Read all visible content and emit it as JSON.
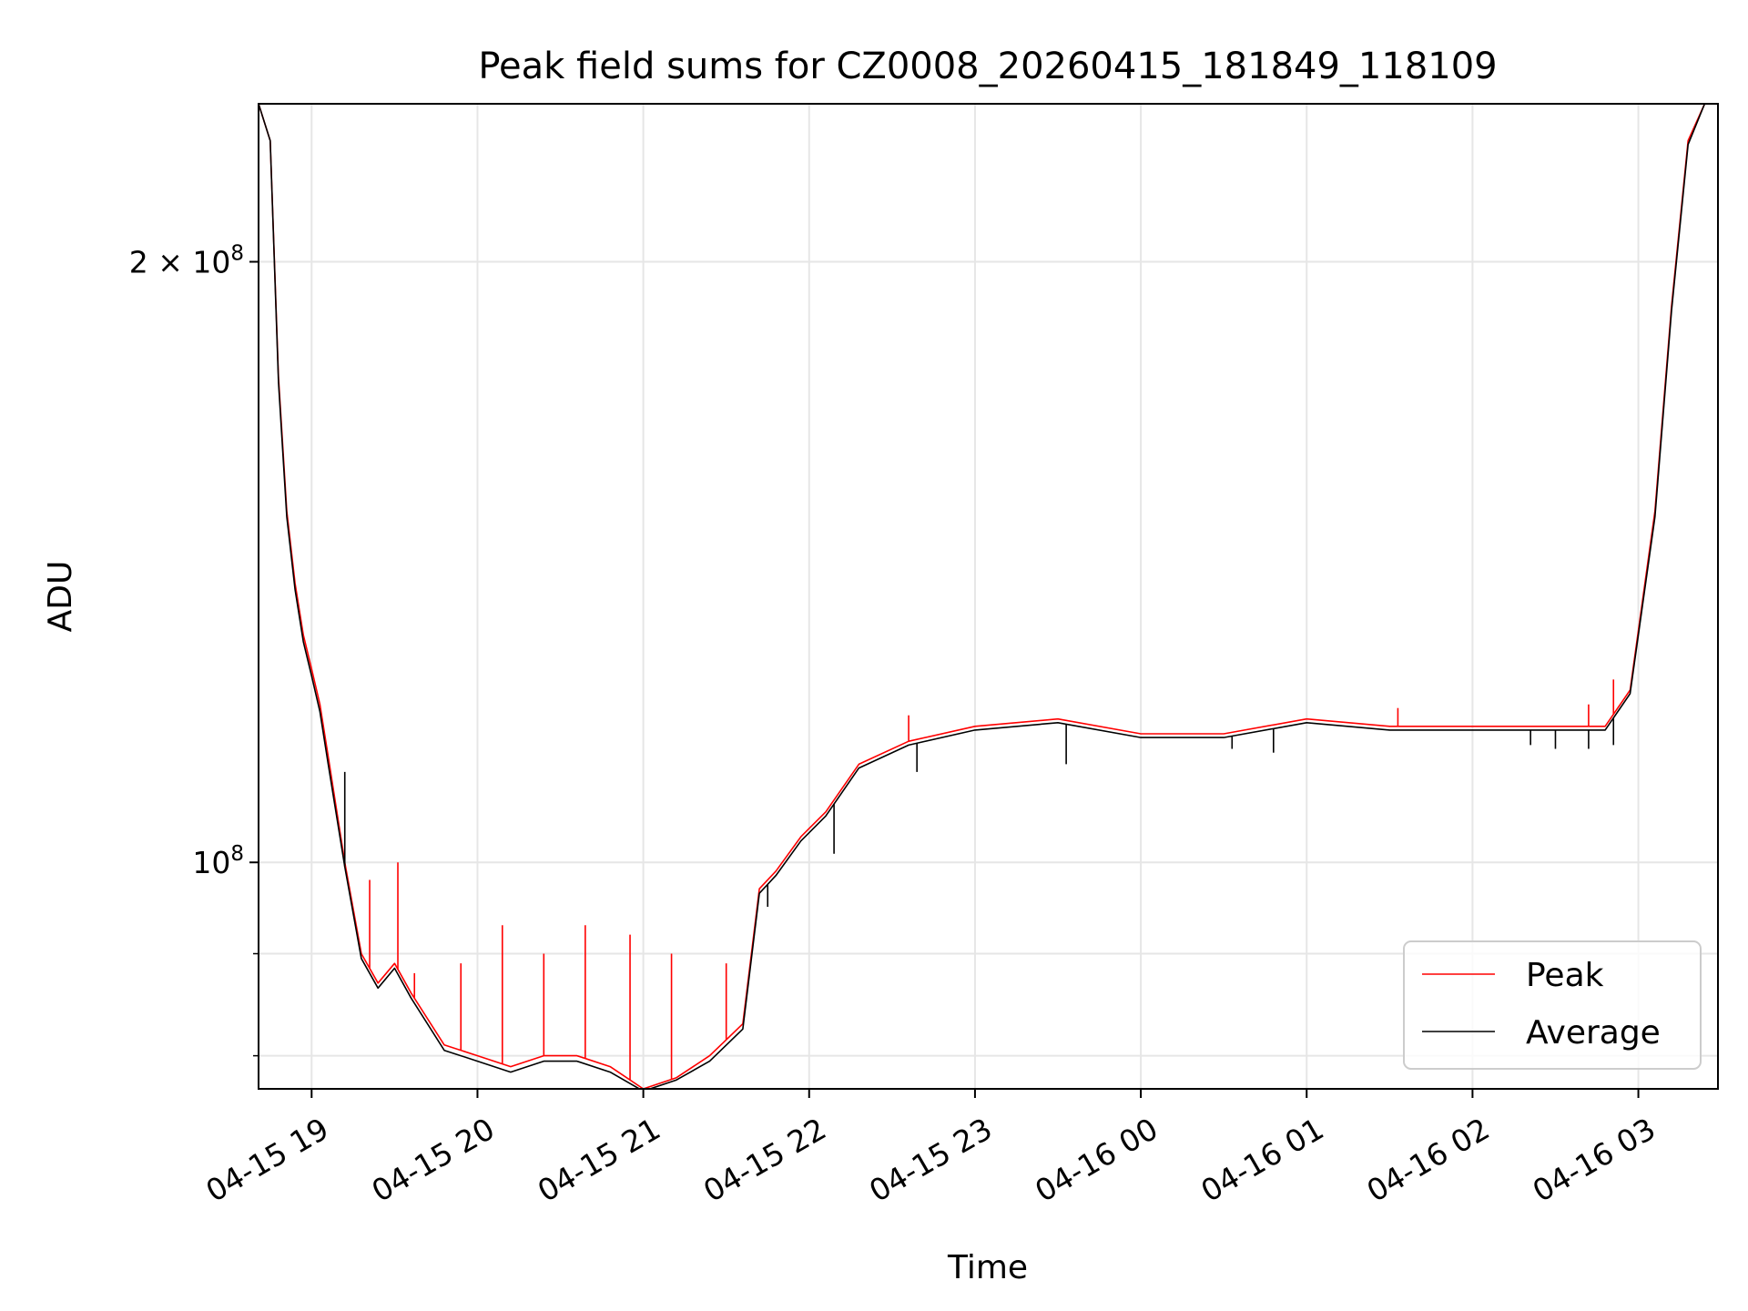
{
  "chart_data": {
    "type": "line",
    "title": "Peak field sums for CZ0008_20260415_181849_118109",
    "xlabel": "Time",
    "ylabel": "ADU",
    "yscale": "log",
    "ylim": [
      77000000,
      240000000
    ],
    "xlim_hours": [
      18.68,
      27.48
    ],
    "grid": true,
    "legend_loc": "lower right",
    "x_ticks": [
      {
        "hour": 19,
        "label": "04-15 19"
      },
      {
        "hour": 20,
        "label": "04-15 20"
      },
      {
        "hour": 21,
        "label": "04-15 21"
      },
      {
        "hour": 22,
        "label": "04-15 22"
      },
      {
        "hour": 23,
        "label": "04-15 23"
      },
      {
        "hour": 24,
        "label": "04-16 00"
      },
      {
        "hour": 25,
        "label": "04-16 01"
      },
      {
        "hour": 26,
        "label": "04-16 02"
      },
      {
        "hour": 27,
        "label": "04-16 03"
      }
    ],
    "y_major_ticks": [
      {
        "value": 100000000,
        "base": "10",
        "exp": "8",
        "coef": ""
      },
      {
        "value": 200000000,
        "base": "10",
        "exp": "8",
        "coef": "2 × "
      }
    ],
    "y_minor_ticks": [
      80000000,
      90000000
    ],
    "x_hours": [
      18.68,
      18.75,
      18.8,
      18.85,
      18.9,
      18.95,
      19.0,
      19.05,
      19.1,
      19.2,
      19.3,
      19.4,
      19.5,
      19.6,
      19.8,
      20.0,
      20.2,
      20.4,
      20.6,
      20.8,
      21.0,
      21.2,
      21.4,
      21.6,
      21.7,
      21.8,
      21.95,
      22.1,
      22.3,
      22.6,
      23.0,
      23.5,
      24.0,
      24.5,
      25.0,
      25.5,
      26.0,
      26.5,
      26.8,
      26.95,
      27.1,
      27.2,
      27.3,
      27.4,
      27.48
    ],
    "series": [
      {
        "name": "Peak",
        "color": "#ff0000",
        "values": [
          240000000,
          230000000,
          175000000,
          150000000,
          138000000,
          130000000,
          125000000,
          120000000,
          113000000,
          100000000,
          90000000,
          87000000,
          89000000,
          86000000,
          81000000,
          80000000,
          79000000,
          80000000,
          80000000,
          79000000,
          77000000,
          78000000,
          80000000,
          83000000,
          97000000,
          99000000,
          103000000,
          106000000,
          112000000,
          115000000,
          117000000,
          118000000,
          116000000,
          116000000,
          118000000,
          117000000,
          117000000,
          117000000,
          117000000,
          122000000,
          150000000,
          190000000,
          230000000,
          240000000,
          240000000
        ]
      },
      {
        "name": "Average",
        "color": "#000000",
        "values": [
          240000000,
          230000000,
          174000000,
          149000000,
          137000000,
          129000000,
          124000000,
          119000000,
          112000000,
          99500000,
          89500000,
          86500000,
          88500000,
          85500000,
          80500000,
          79500000,
          78500000,
          79500000,
          79500000,
          78500000,
          76800000,
          77800000,
          79500000,
          82500000,
          96500000,
          98500000,
          102500000,
          105500000,
          111500000,
          114500000,
          116500000,
          117500000,
          115500000,
          115500000,
          117500000,
          116500000,
          116500000,
          116500000,
          116500000,
          121500000,
          149000000,
          189000000,
          229000000,
          240000000,
          240000000
        ]
      }
    ],
    "peak_spikes": [
      {
        "hour": 19.35,
        "value": 98000000
      },
      {
        "hour": 19.52,
        "value": 100000000
      },
      {
        "hour": 19.62,
        "value": 88000000
      },
      {
        "hour": 19.9,
        "value": 89000000
      },
      {
        "hour": 20.15,
        "value": 93000000
      },
      {
        "hour": 20.4,
        "value": 90000000
      },
      {
        "hour": 20.65,
        "value": 93000000
      },
      {
        "hour": 20.92,
        "value": 92000000
      },
      {
        "hour": 21.17,
        "value": 90000000
      },
      {
        "hour": 21.5,
        "value": 89000000
      },
      {
        "hour": 22.6,
        "value": 118500000
      },
      {
        "hour": 25.55,
        "value": 119500000
      },
      {
        "hour": 26.7,
        "value": 120000000
      },
      {
        "hour": 26.85,
        "value": 123500000
      }
    ],
    "average_dips": [
      {
        "hour": 19.2,
        "value": 111000000
      },
      {
        "hour": 21.75,
        "value": 95000000
      },
      {
        "hour": 22.15,
        "value": 101000000
      },
      {
        "hour": 22.65,
        "value": 111000000
      },
      {
        "hour": 23.55,
        "value": 112000000
      },
      {
        "hour": 24.55,
        "value": 114000000
      },
      {
        "hour": 24.8,
        "value": 113500000
      },
      {
        "hour": 26.35,
        "value": 114500000
      },
      {
        "hour": 26.5,
        "value": 114000000
      },
      {
        "hour": 26.7,
        "value": 114000000
      },
      {
        "hour": 26.85,
        "value": 114500000
      }
    ]
  }
}
